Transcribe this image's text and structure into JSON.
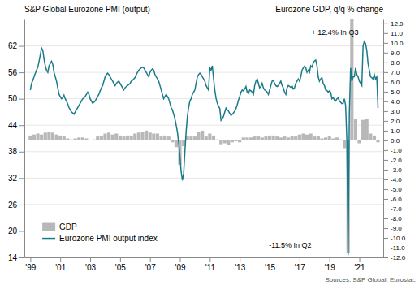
{
  "chart_data": {
    "type": "bar",
    "ylabel": "S&P Global Eurozone PMI (output)",
    "y2label": "Eurozone GDP, q/q % change",
    "source": "Sources: S&P Global, Eurostat.",
    "annotations": [
      "+ 12.4% In Q3",
      "-11.5% In Q2"
    ],
    "xlim": [
      1998.6,
      2022.6
    ],
    "xticks": [
      {
        "value": 1999,
        "label": "'99"
      },
      {
        "value": 2001,
        "label": "'01"
      },
      {
        "value": 2003,
        "label": "'03"
      },
      {
        "value": 2005,
        "label": "'05"
      },
      {
        "value": 2007,
        "label": "'07"
      },
      {
        "value": 2009,
        "label": "'09"
      },
      {
        "value": 2011,
        "label": "'11"
      },
      {
        "value": 2013,
        "label": "'13"
      },
      {
        "value": 2015,
        "label": "'15"
      },
      {
        "value": 2017,
        "label": "'17"
      },
      {
        "value": 2019,
        "label": "'19"
      },
      {
        "value": 2021,
        "label": "'21"
      }
    ],
    "ylim": [
      14,
      68
    ],
    "yticks": [
      14,
      20,
      26,
      32,
      38,
      44,
      50,
      56,
      62
    ],
    "y2lim": [
      -12.0,
      12.4
    ],
    "y2ticks": [
      {
        "value": -12.0,
        "label": "-12.0"
      },
      {
        "value": -11.0,
        "label": "-11.0"
      },
      {
        "value": -10.0,
        "label": "-10.0"
      },
      {
        "value": -9.0,
        "label": "-9.0"
      },
      {
        "value": -8.0,
        "label": "-8.0"
      },
      {
        "value": -7.0,
        "label": "-7.0"
      },
      {
        "value": -6.0,
        "label": "-6.0"
      },
      {
        "value": -5.0,
        "label": "-5.0"
      },
      {
        "value": -4.0,
        "label": "-4.0"
      },
      {
        "value": -3.0,
        "label": "-3.0"
      },
      {
        "value": -2.0,
        "label": "-2.0"
      },
      {
        "value": -1.0,
        "label": "-1.0"
      },
      {
        "value": 0.0,
        "label": "0.0"
      },
      {
        "value": 1.0,
        "label": "1.0"
      },
      {
        "value": 2.0,
        "label": "2.0"
      },
      {
        "value": 3.0,
        "label": "3.0"
      },
      {
        "value": 4.0,
        "label": "4.0"
      },
      {
        "value": 5.0,
        "label": "5.0"
      },
      {
        "value": 6.0,
        "label": "6.0"
      },
      {
        "value": 7.0,
        "label": "7.0"
      },
      {
        "value": 8.0,
        "label": "8.0"
      },
      {
        "value": 9.0,
        "label": "9.0"
      },
      {
        "value": 10.0,
        "label": "10.0"
      },
      {
        "value": 11.0,
        "label": "11.0"
      },
      {
        "value": 12.0,
        "label": "12.0"
      }
    ],
    "grid": true,
    "legend": "lower left",
    "series": [
      {
        "name": "GDP",
        "type": "bar",
        "axis": "y2",
        "color": "#b8b8b8",
        "x": [
          1999.0,
          1999.25,
          1999.5,
          1999.75,
          2000.0,
          2000.25,
          2000.5,
          2000.75,
          2001.0,
          2001.25,
          2001.5,
          2001.75,
          2002.0,
          2002.25,
          2002.5,
          2002.75,
          2003.0,
          2003.25,
          2003.5,
          2003.75,
          2004.0,
          2004.25,
          2004.5,
          2004.75,
          2005.0,
          2005.25,
          2005.5,
          2005.75,
          2006.0,
          2006.25,
          2006.5,
          2006.75,
          2007.0,
          2007.25,
          2007.5,
          2007.75,
          2008.0,
          2008.25,
          2008.5,
          2008.75,
          2009.0,
          2009.25,
          2009.5,
          2009.75,
          2010.0,
          2010.25,
          2010.5,
          2010.75,
          2011.0,
          2011.25,
          2011.5,
          2011.75,
          2012.0,
          2012.25,
          2012.5,
          2012.75,
          2013.0,
          2013.25,
          2013.5,
          2013.75,
          2014.0,
          2014.25,
          2014.5,
          2014.75,
          2015.0,
          2015.25,
          2015.5,
          2015.75,
          2016.0,
          2016.25,
          2016.5,
          2016.75,
          2017.0,
          2017.25,
          2017.5,
          2017.75,
          2018.0,
          2018.25,
          2018.5,
          2018.75,
          2019.0,
          2019.25,
          2019.5,
          2019.75,
          2020.0,
          2020.25,
          2020.5,
          2020.75,
          2021.0,
          2021.25,
          2021.5,
          2021.75,
          2022.0,
          2022.25
        ],
        "values": [
          0.5,
          0.6,
          0.7,
          0.6,
          0.8,
          0.9,
          0.8,
          0.6,
          0.5,
          0.4,
          0.2,
          0.1,
          0.2,
          0.3,
          0.3,
          0.2,
          0.0,
          0.1,
          0.4,
          0.5,
          0.7,
          0.8,
          0.6,
          0.7,
          0.5,
          0.4,
          0.5,
          0.5,
          0.7,
          0.8,
          0.9,
          1.0,
          0.8,
          0.7,
          0.7,
          0.4,
          0.5,
          0.4,
          -0.2,
          -0.7,
          -2.5,
          -0.6,
          0.4,
          0.4,
          0.4,
          0.9,
          1.0,
          0.4,
          0.7,
          0.5,
          0.1,
          -0.4,
          -0.3,
          -0.5,
          -0.2,
          -0.1,
          -0.2,
          0.3,
          0.3,
          0.3,
          0.4,
          0.4,
          0.3,
          0.4,
          0.5,
          0.5,
          0.4,
          0.3,
          0.4,
          0.3,
          0.4,
          0.4,
          0.6,
          0.7,
          0.6,
          0.7,
          0.4,
          0.4,
          0.2,
          0.3,
          0.4,
          0.2,
          0.3,
          0.1,
          -0.8,
          -11.5,
          12.4,
          2.2,
          -0.3,
          2.1,
          2.2,
          0.7,
          0.5,
          -0.2
        ]
      },
      {
        "name": "Eurozone PMI output index",
        "type": "line",
        "color": "#1a7a8a",
        "x": [
          1999.0,
          1999.083,
          1999.167,
          1999.25,
          1999.333,
          1999.417,
          1999.5,
          1999.583,
          1999.667,
          1999.75,
          1999.833,
          1999.917,
          2000.0,
          2000.083,
          2000.167,
          2000.25,
          2000.333,
          2000.417,
          2000.5,
          2000.583,
          2000.667,
          2000.75,
          2000.833,
          2000.917,
          2001.0,
          2001.083,
          2001.167,
          2001.25,
          2001.333,
          2001.417,
          2001.5,
          2001.583,
          2001.667,
          2001.75,
          2001.833,
          2001.917,
          2002.0,
          2002.083,
          2002.167,
          2002.25,
          2002.333,
          2002.417,
          2002.5,
          2002.583,
          2002.667,
          2002.75,
          2002.833,
          2002.917,
          2003.0,
          2003.083,
          2003.167,
          2003.25,
          2003.333,
          2003.417,
          2003.5,
          2003.583,
          2003.667,
          2003.75,
          2003.833,
          2003.917,
          2004.0,
          2004.083,
          2004.167,
          2004.25,
          2004.333,
          2004.417,
          2004.5,
          2004.583,
          2004.667,
          2004.75,
          2004.833,
          2004.917,
          2005.0,
          2005.083,
          2005.167,
          2005.25,
          2005.333,
          2005.417,
          2005.5,
          2005.583,
          2005.667,
          2005.75,
          2005.833,
          2005.917,
          2006.0,
          2006.083,
          2006.167,
          2006.25,
          2006.333,
          2006.417,
          2006.5,
          2006.583,
          2006.667,
          2006.75,
          2006.833,
          2006.917,
          2007.0,
          2007.083,
          2007.167,
          2007.25,
          2007.333,
          2007.417,
          2007.5,
          2007.583,
          2007.667,
          2007.75,
          2007.833,
          2007.917,
          2008.0,
          2008.083,
          2008.167,
          2008.25,
          2008.333,
          2008.417,
          2008.5,
          2008.583,
          2008.667,
          2008.75,
          2008.833,
          2008.917,
          2009.0,
          2009.083,
          2009.167,
          2009.25,
          2009.333,
          2009.417,
          2009.5,
          2009.583,
          2009.667,
          2009.75,
          2009.833,
          2009.917,
          2010.0,
          2010.083,
          2010.167,
          2010.25,
          2010.333,
          2010.417,
          2010.5,
          2010.583,
          2010.667,
          2010.75,
          2010.833,
          2010.917,
          2011.0,
          2011.083,
          2011.167,
          2011.25,
          2011.333,
          2011.417,
          2011.5,
          2011.583,
          2011.667,
          2011.75,
          2011.833,
          2011.917,
          2012.0,
          2012.083,
          2012.167,
          2012.25,
          2012.333,
          2012.417,
          2012.5,
          2012.583,
          2012.667,
          2012.75,
          2012.833,
          2012.917,
          2013.0,
          2013.083,
          2013.167,
          2013.25,
          2013.333,
          2013.417,
          2013.5,
          2013.583,
          2013.667,
          2013.75,
          2013.833,
          2013.917,
          2014.0,
          2014.083,
          2014.167,
          2014.25,
          2014.333,
          2014.417,
          2014.5,
          2014.583,
          2014.667,
          2014.75,
          2014.833,
          2014.917,
          2015.0,
          2015.083,
          2015.167,
          2015.25,
          2015.333,
          2015.417,
          2015.5,
          2015.583,
          2015.667,
          2015.75,
          2015.833,
          2015.917,
          2016.0,
          2016.083,
          2016.167,
          2016.25,
          2016.333,
          2016.417,
          2016.5,
          2016.583,
          2016.667,
          2016.75,
          2016.833,
          2016.917,
          2017.0,
          2017.083,
          2017.167,
          2017.25,
          2017.333,
          2017.417,
          2017.5,
          2017.583,
          2017.667,
          2017.75,
          2017.833,
          2017.917,
          2018.0,
          2018.083,
          2018.167,
          2018.25,
          2018.333,
          2018.417,
          2018.5,
          2018.583,
          2018.667,
          2018.75,
          2018.833,
          2018.917,
          2019.0,
          2019.083,
          2019.167,
          2019.25,
          2019.333,
          2019.417,
          2019.5,
          2019.583,
          2019.667,
          2019.75,
          2019.833,
          2019.917,
          2020.0,
          2020.083,
          2020.167,
          2020.25,
          2020.333,
          2020.417,
          2020.5,
          2020.583,
          2020.667,
          2020.75,
          2020.833,
          2020.917,
          2021.0,
          2021.083,
          2021.167,
          2021.25,
          2021.333,
          2021.417,
          2021.5,
          2021.583,
          2021.667,
          2021.75,
          2021.833,
          2021.917,
          2022.0,
          2022.083,
          2022.167,
          2022.25
        ],
        "values": [
          52.0,
          53.5,
          54.2,
          55.0,
          55.8,
          56.5,
          57.2,
          58.5,
          60.0,
          61.5,
          61.0,
          59.0,
          57.5,
          56.5,
          56.0,
          57.5,
          58.0,
          58.5,
          57.8,
          56.0,
          55.0,
          54.0,
          52.5,
          51.0,
          50.5,
          50.0,
          50.2,
          50.8,
          50.0,
          49.5,
          48.8,
          48.0,
          47.5,
          47.0,
          46.8,
          46.5,
          47.0,
          47.5,
          48.0,
          48.5,
          49.0,
          49.5,
          50.0,
          50.2,
          50.5,
          51.0,
          51.5,
          51.0,
          50.0,
          49.5,
          49.0,
          49.2,
          49.5,
          50.0,
          50.5,
          51.0,
          51.8,
          52.5,
          53.0,
          54.0,
          55.0,
          55.5,
          55.8,
          55.5,
          55.0,
          54.5,
          54.0,
          53.5,
          53.0,
          53.5,
          53.8,
          54.0,
          53.5,
          53.0,
          52.5,
          52.0,
          52.5,
          52.8,
          53.0,
          53.2,
          53.5,
          54.0,
          54.2,
          54.5,
          54.8,
          55.5,
          56.0,
          56.5,
          56.8,
          57.0,
          57.2,
          57.0,
          56.5,
          56.0,
          55.5,
          55.0,
          56.0,
          56.5,
          56.8,
          56.5,
          55.5,
          55.0,
          54.5,
          54.0,
          53.0,
          52.0,
          51.0,
          50.0,
          50.5,
          51.0,
          50.5,
          50.0,
          49.0,
          48.0,
          47.5,
          46.5,
          45.5,
          44.0,
          42.5,
          40.0,
          37.0,
          33.5,
          31.5,
          33.0,
          38.0,
          42.5,
          46.0,
          48.0,
          49.5,
          50.0,
          51.0,
          51.5,
          52.0,
          53.5,
          55.0,
          55.5,
          55.8,
          55.5,
          55.0,
          54.5,
          54.0,
          53.0,
          52.5,
          52.0,
          57.0,
          56.5,
          57.5,
          54.6,
          52.0,
          50.1,
          49.0,
          48.3,
          47.8,
          45.1,
          45.5,
          46.0,
          47.0,
          47.9,
          47.5,
          47.2,
          46.7,
          46.2,
          46.5,
          46.8,
          47.2,
          47.8,
          48.6,
          49.7,
          50.5,
          51.5,
          52.0,
          51.8,
          52.2,
          52.8,
          51.5,
          51.2,
          52.0,
          51.8,
          51.5,
          51.0,
          53.0,
          54.0,
          54.5,
          53.5,
          52.5,
          52.8,
          53.5,
          52.5,
          52.0,
          51.8,
          51.5,
          51.0,
          52.0,
          53.0,
          54.0,
          54.2,
          53.5,
          53.0,
          52.8,
          53.0,
          53.5,
          54.0,
          53.0,
          52.5,
          51.5,
          51.0,
          52.5,
          53.0,
          52.8,
          52.6,
          52.9,
          52.2,
          52.5,
          53.5,
          54.0,
          54.5,
          54.0,
          55.0,
          56.5,
          57.0,
          57.4,
          57.0,
          56.0,
          56.5,
          56.0,
          57.5,
          57.2,
          58.1,
          58.6,
          58.8,
          57.5,
          55.0,
          54.0,
          54.5,
          54.8,
          53.5,
          53.0,
          52.0,
          51.9,
          51.5,
          51.8,
          51.5,
          50.0,
          50.3,
          49.7,
          49.5,
          50.0,
          50.2,
          49.5,
          49.2,
          48.9,
          49.0,
          50.0,
          48.5,
          40.5,
          14.5,
          47.0,
          57.0,
          54.0,
          55.0,
          55.0,
          57.0,
          55.5,
          55.0,
          54.0,
          53.5,
          53.0,
          62.0,
          63.0,
          62.5,
          61.0,
          58.0,
          56.5,
          55.0,
          54.8,
          54.5,
          55.5,
          54.5,
          55.0,
          47.9
        ]
      }
    ]
  }
}
